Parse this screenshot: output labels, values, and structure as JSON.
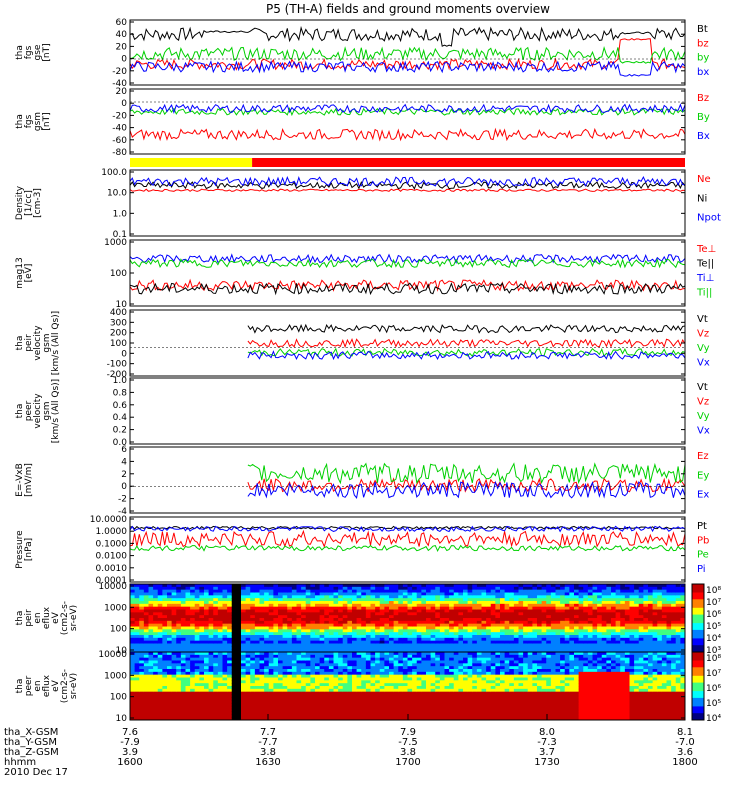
{
  "title": "P5 (TH-A) fields and ground moments overview",
  "colors": {
    "black": "#000000",
    "red": "#ff0000",
    "green": "#00d000",
    "blue": "#0000ff",
    "yellow": "#ffff00"
  },
  "chart_data": [
    {
      "type": "line",
      "panel": "fgs_gse",
      "ylabel_lines": [
        "tha",
        "fgs",
        "gse",
        "[nT]"
      ],
      "ylim": [
        -40,
        60
      ],
      "ticks": [
        "60",
        "40",
        "20",
        "0",
        "-20",
        "-40"
      ],
      "series": [
        {
          "name": "Bt",
          "color": "#000000",
          "base": 38,
          "noise": 10,
          "quiet": [
            [
              0.13,
              0.22,
              42
            ],
            [
              0.56,
              0.58,
              20
            ],
            [
              0.88,
              0.94,
              40
            ]
          ]
        },
        {
          "name": "bz",
          "color": "#ff0000",
          "base": -8,
          "noise": 8,
          "quiet": [
            [
              0.88,
              0.94,
              30
            ]
          ]
        },
        {
          "name": "by",
          "color": "#00d000",
          "base": 8,
          "noise": 10,
          "quiet": [
            [
              0.88,
              0.94,
              -5
            ]
          ]
        },
        {
          "name": "bx",
          "color": "#0000ff",
          "base": -12,
          "noise": 8,
          "quiet": [
            [
              0.88,
              0.94,
              -25
            ]
          ]
        }
      ]
    },
    {
      "type": "line",
      "panel": "fgs_gsm",
      "ylabel_lines": [
        "tha",
        "fgs",
        "gsm",
        "[nT]"
      ],
      "ylim": [
        -80,
        20
      ],
      "ticks": [
        "20",
        "0",
        "-20",
        "-40",
        "-60",
        "-80"
      ],
      "series": [
        {
          "name": "Bz",
          "color": "#ff0000",
          "base": -50,
          "noise": 8
        },
        {
          "name": "By",
          "color": "#00d000",
          "base": -15,
          "noise": 5
        },
        {
          "name": "Bx",
          "color": "#0000ff",
          "base": -10,
          "noise": 6
        }
      ]
    },
    {
      "type": "bar_strip",
      "panel": "mode",
      "segments": [
        {
          "from": 0,
          "to": 0.22,
          "color": "#ffff00"
        },
        {
          "from": 0.22,
          "to": 1,
          "color": "#ff0000"
        }
      ]
    },
    {
      "type": "line",
      "panel": "density",
      "log": true,
      "ylabel_lines": [
        "Density",
        "[1/cc]",
        "[cm-3]"
      ],
      "ylim": [
        0.1,
        100
      ],
      "ticks": [
        "100.0",
        "10.0",
        "1.0",
        "0.1"
      ],
      "series": [
        {
          "name": "Ne",
          "color": "#ff0000",
          "base": 12,
          "noise": 0.05
        },
        {
          "name": "Ni",
          "color": "#000000",
          "base": 20,
          "noise": 0.15
        },
        {
          "name": "Npot",
          "color": "#0000ff",
          "base": 30,
          "noise": 0.2
        }
      ]
    },
    {
      "type": "line",
      "panel": "temperature",
      "log": true,
      "ylabel_lines": [
        "mag13",
        "[eV]"
      ],
      "ylim": [
        10,
        3000
      ],
      "ticks": [
        "1000",
        "100",
        "10"
      ],
      "series": [
        {
          "name": "Te⊥",
          "color": "#ff0000",
          "base": 60,
          "noise": 0.2
        },
        {
          "name": "Te||",
          "color": "#000000",
          "base": 45,
          "noise": 0.2
        },
        {
          "name": "Ti⊥",
          "color": "#0000ff",
          "base": 600,
          "noise": 0.15
        },
        {
          "name": "Ti||",
          "color": "#00d000",
          "base": 400,
          "noise": 0.15
        }
      ]
    },
    {
      "type": "line",
      "panel": "peir_velocity",
      "ylabel_lines": [
        "tha",
        "peir",
        "velocity",
        "gsm",
        "[km/s (All Qs)]"
      ],
      "ylim": [
        -300,
        400
      ],
      "ticks": [
        "400",
        "300",
        "200",
        "100",
        "0",
        "-100",
        "-200"
      ],
      "series": [
        {
          "name": "Vt",
          "color": "#000000",
          "base": 200,
          "noise": 40
        },
        {
          "name": "Vz",
          "color": "#ff0000",
          "base": 50,
          "noise": 40
        },
        {
          "name": "Vy",
          "color": "#00d000",
          "base": -50,
          "noise": 40
        },
        {
          "name": "Vx",
          "color": "#0000ff",
          "base": -80,
          "noise": 40
        }
      ]
    },
    {
      "type": "line",
      "panel": "peer_velocity",
      "ylabel_lines": [
        "tha",
        "peer",
        "velocity",
        "gsm",
        "[km/s (All Qs)]"
      ],
      "ylim": [
        0,
        1
      ],
      "ticks": [
        "1.0",
        "0.8",
        "0.6",
        "0.4",
        "0.2",
        "0.0"
      ],
      "series": [
        {
          "name": "Vt",
          "color": "#000000"
        },
        {
          "name": "Vz",
          "color": "#ff0000"
        },
        {
          "name": "Vy",
          "color": "#00d000"
        },
        {
          "name": "Vx",
          "color": "#0000ff"
        }
      ]
    },
    {
      "type": "line",
      "panel": "efield",
      "ylabel_lines": [
        "E=-VxB",
        "[mV/m]"
      ],
      "ylim": [
        -4,
        6
      ],
      "ticks": [
        "6",
        "4",
        "2",
        "0",
        "-2",
        "-4"
      ],
      "series": [
        {
          "name": "Ez",
          "color": "#ff0000",
          "base": 0.2,
          "noise": 1
        },
        {
          "name": "Ey",
          "color": "#00d000",
          "base": 2,
          "noise": 1.5
        },
        {
          "name": "Ex",
          "color": "#0000ff",
          "base": -0.5,
          "noise": 1.2
        }
      ]
    },
    {
      "type": "line",
      "panel": "pressure",
      "log": true,
      "ylabel_lines": [
        "Pressure",
        "[nPa]"
      ],
      "ylim": [
        0.0001,
        10
      ],
      "ticks": [
        "10.0000",
        "1.0000",
        "0.1000",
        "0.0100",
        "0.0010",
        "0.0001"
      ],
      "series": [
        {
          "name": "Pt",
          "color": "#000000",
          "base": 1.5,
          "noise": 0.1
        },
        {
          "name": "Pb",
          "color": "#ff0000",
          "base": 0.2,
          "noise": 0.6
        },
        {
          "name": "Pe",
          "color": "#00d000",
          "base": 0.04,
          "noise": 0.2
        },
        {
          "name": "Pi",
          "color": "#0000ff",
          "base": 1.2,
          "noise": 0.2
        }
      ]
    },
    {
      "type": "heatmap",
      "panel": "peir_spectrogram",
      "ylabel_lines": [
        "tha",
        "peir",
        "en",
        "eflux",
        "eV",
        "(cm2-s-",
        "sr-eV)"
      ],
      "ylim": [
        10,
        20000
      ],
      "ticks": [
        "10000",
        "1000",
        "100",
        "10"
      ],
      "colorbar_ticks": [
        "10⁸",
        "10⁷",
        "10⁶",
        "10⁵",
        "10⁴",
        "10³"
      ]
    },
    {
      "type": "heatmap",
      "panel": "peer_spectrogram",
      "ylabel_lines": [
        "tha",
        "peer",
        "en",
        "eflux",
        "eV",
        "(cm2-s-",
        "sr-eV)"
      ],
      "ylim": [
        10,
        20000
      ],
      "ticks": [
        "10000",
        "1000",
        "100",
        "10"
      ],
      "colorbar_ticks": [
        "10⁸",
        "10⁷",
        "10⁶",
        "10⁵",
        "10⁴"
      ]
    }
  ],
  "xaxis": {
    "row_labels": [
      "tha_X-GSM",
      "tha_Y-GSM",
      "tha_Z-GSM",
      "hhmm",
      "2010 Dec 17"
    ],
    "ticks": [
      {
        "x": "7.6",
        "y": "-7.9",
        "z": "3.9",
        "t": "1600"
      },
      {
        "x": "7.7",
        "y": "-7.7",
        "z": "3.8",
        "t": "1630"
      },
      {
        "x": "7.9",
        "y": "-7.5",
        "z": "3.8",
        "t": "1700"
      },
      {
        "x": "8.0",
        "y": "-7.3",
        "z": "3.7",
        "t": "1730"
      },
      {
        "x": "8.1",
        "y": "-7.0",
        "z": "3.6",
        "t": "1800"
      }
    ]
  }
}
